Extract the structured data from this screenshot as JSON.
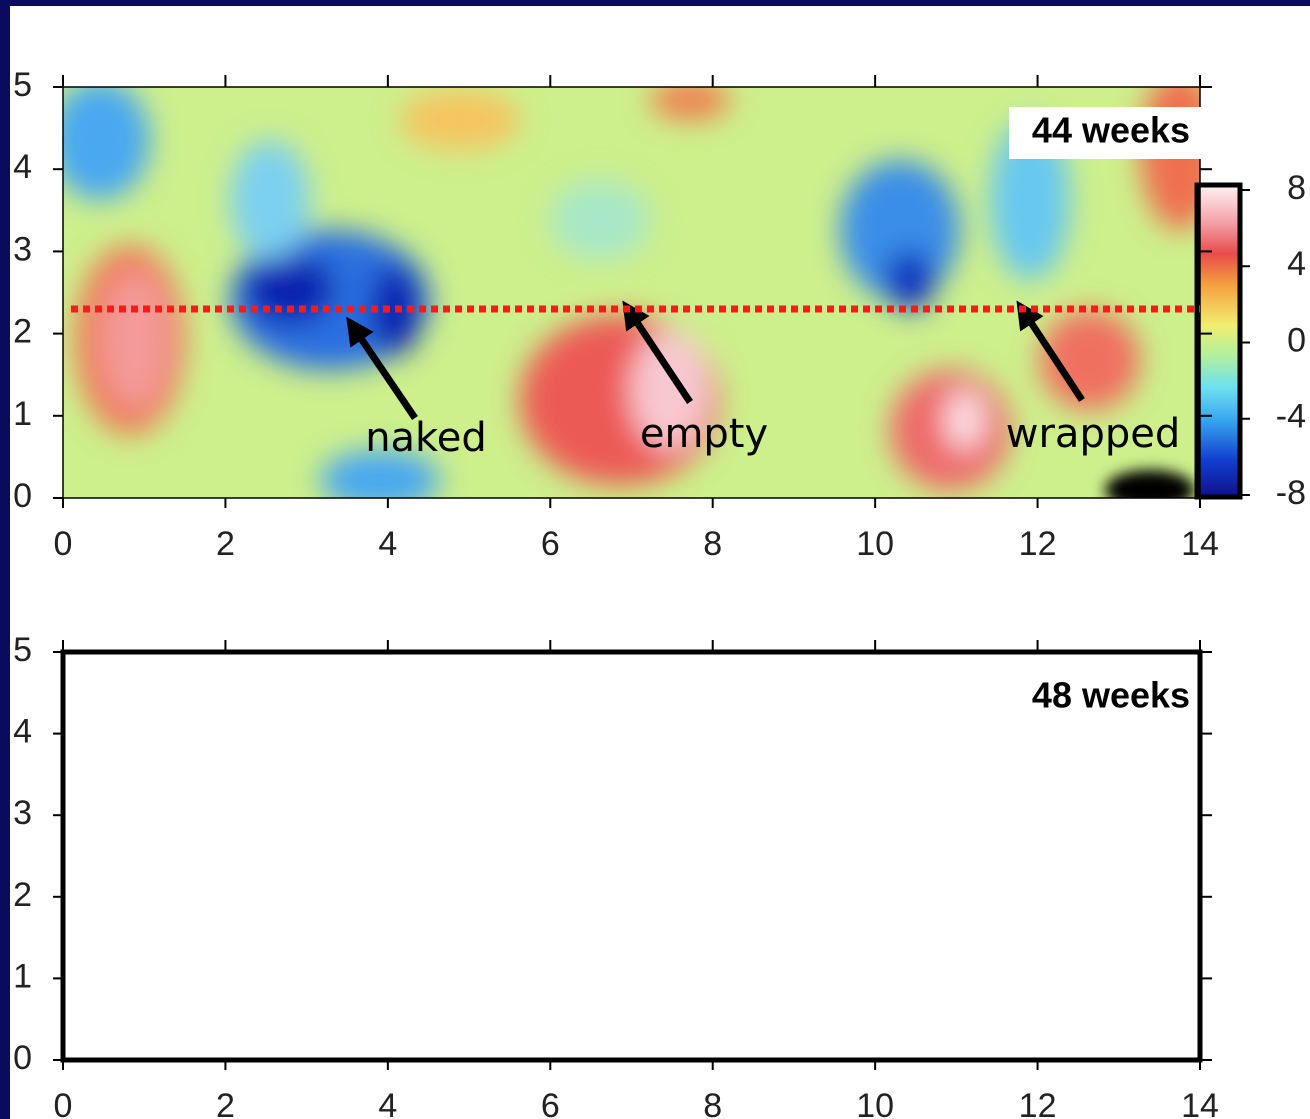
{
  "chart_data": [
    {
      "type": "heatmap",
      "annotation": "44 weeks",
      "xlim": [
        0,
        14
      ],
      "xticks": [
        0,
        2,
        4,
        6,
        8,
        10,
        12,
        14
      ],
      "ylim": [
        0,
        5
      ],
      "yticks": [
        0,
        1,
        2,
        3,
        4,
        5
      ],
      "hline": 2.3,
      "hline_color": "#ff1a1a",
      "colorbar": {
        "lim": [
          -8,
          8
        ],
        "ticks": [
          -8,
          -4,
          0,
          4,
          8
        ]
      },
      "labels": [
        "naked",
        "empty",
        "wrapped"
      ]
    },
    {
      "type": "empty",
      "annotation": "48 weeks",
      "xlim": [
        0,
        14
      ],
      "xticks": [
        0,
        2,
        4,
        6,
        8,
        10,
        12,
        14
      ],
      "ylim": [
        0,
        5
      ],
      "yticks": [
        0,
        1,
        2,
        3,
        4,
        5
      ]
    }
  ]
}
